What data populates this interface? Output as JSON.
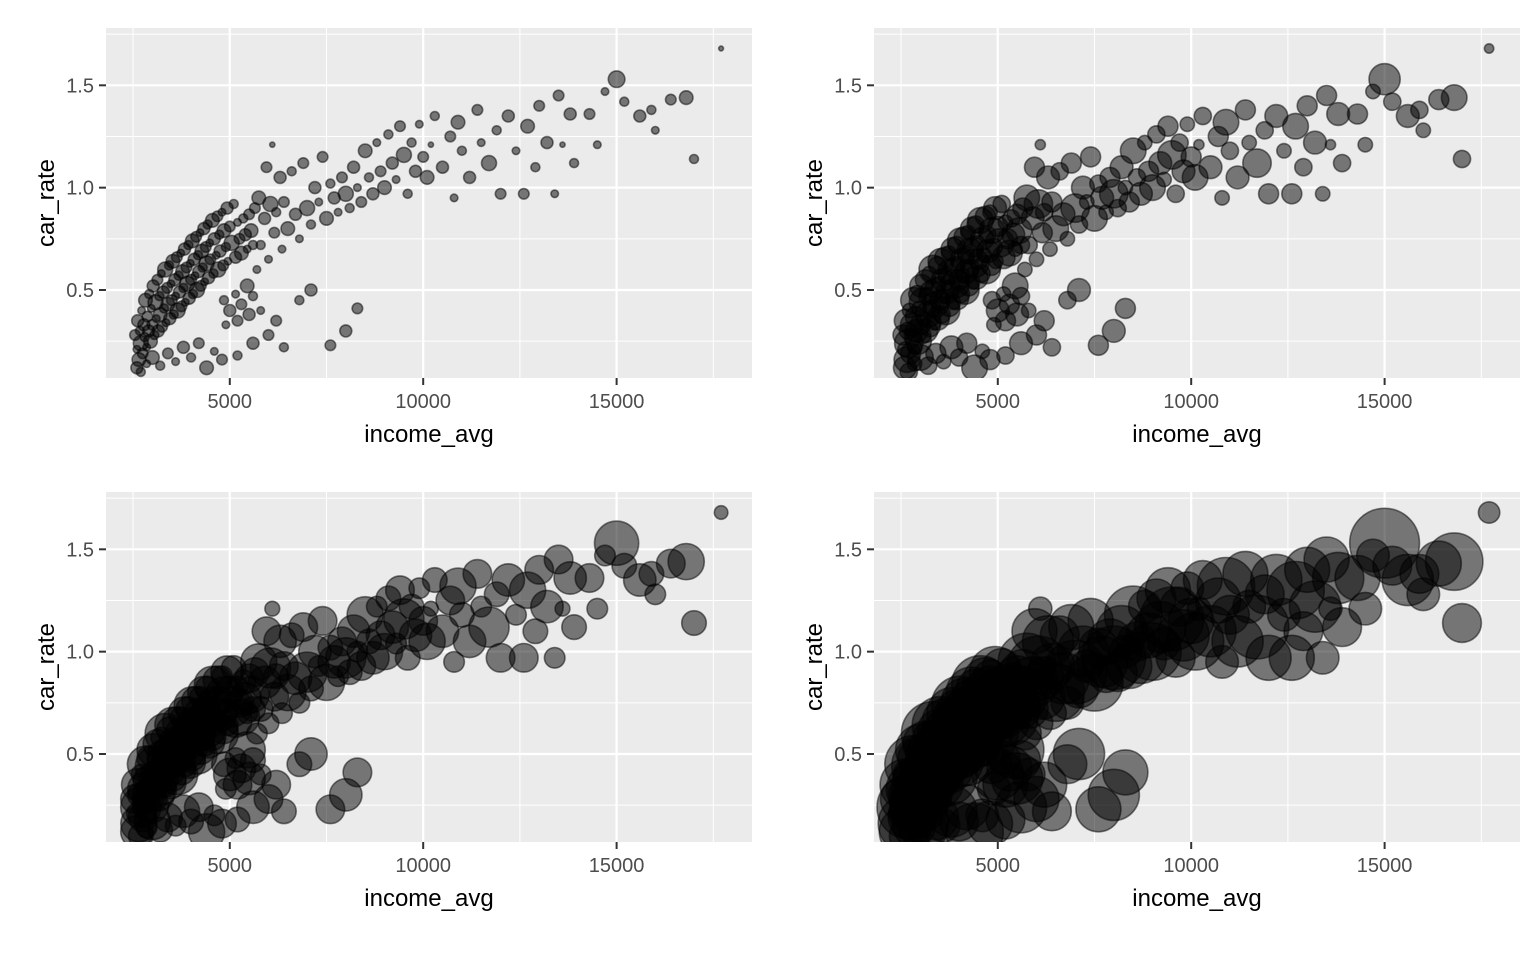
{
  "figure": {
    "background_color": "#ffffff",
    "panel_background_color": "#ebebeb",
    "grid_major_color": "#ffffff",
    "grid_minor_color": "#ffffff",
    "tick_mark_color": "#333333",
    "tick_label_color": "#4d4d4d",
    "axis_title_color": "#000000",
    "point_color": "#000000",
    "point_fill_opacity": 0.5,
    "point_stroke_opacity": 0.5
  },
  "chart_data": {
    "type": "scatter",
    "title": "",
    "xlabel": "income_avg",
    "ylabel": "car_rate",
    "xlim": [
      1800,
      18500
    ],
    "ylim": [
      0.07,
      1.78
    ],
    "grid": true,
    "x_ticks": [
      {
        "v": 5000,
        "label": "5000"
      },
      {
        "v": 10000,
        "label": "10000"
      },
      {
        "v": 15000,
        "label": "15000"
      }
    ],
    "y_ticks": [
      {
        "v": 0.5,
        "label": "0.5"
      },
      {
        "v": 1.0,
        "label": "1.0"
      },
      {
        "v": 1.5,
        "label": "1.5"
      }
    ],
    "x_minor_ticks": [
      2500,
      7500,
      12500,
      17500
    ],
    "y_minor_ticks": [
      0.25,
      0.75,
      1.25,
      1.75
    ],
    "panels": [
      {
        "name": "top-left",
        "bubble_size": "small",
        "point_radius_range": [
          1.5,
          9
        ]
      },
      {
        "name": "top-right",
        "bubble_size": "medium",
        "point_radius_range": [
          3,
          17
        ]
      },
      {
        "name": "bottom-left",
        "bubble_size": "large",
        "point_radius_range": [
          4.5,
          24
        ]
      },
      {
        "name": "bottom-right",
        "bubble_size": "x-large",
        "point_radius_range": [
          7,
          38
        ]
      }
    ],
    "points_format": [
      "income_avg",
      "car_rate",
      "size_norm"
    ],
    "points": [
      [
        2550,
        0.28,
        0.5
      ],
      [
        2600,
        0.21,
        0.3
      ],
      [
        2620,
        0.35,
        0.6
      ],
      [
        2650,
        0.16,
        0.7
      ],
      [
        2680,
        0.3,
        0.4
      ],
      [
        2700,
        0.24,
        0.8
      ],
      [
        2720,
        0.4,
        0.3
      ],
      [
        2750,
        0.19,
        0.5
      ],
      [
        2780,
        0.33,
        0.6
      ],
      [
        2800,
        0.27,
        0.4
      ],
      [
        2820,
        0.45,
        0.7
      ],
      [
        2850,
        0.22,
        0.3
      ],
      [
        2870,
        0.37,
        0.5
      ],
      [
        2900,
        0.3,
        0.6
      ],
      [
        2920,
        0.48,
        0.4
      ],
      [
        2950,
        0.25,
        0.7
      ],
      [
        2970,
        0.41,
        0.3
      ],
      [
        3000,
        0.33,
        0.5
      ],
      [
        3020,
        0.52,
        0.6
      ],
      [
        3050,
        0.28,
        0.4
      ],
      [
        3080,
        0.44,
        0.8
      ],
      [
        3100,
        0.36,
        0.3
      ],
      [
        3130,
        0.55,
        0.5
      ],
      [
        3150,
        0.3,
        0.6
      ],
      [
        3180,
        0.47,
        0.4
      ],
      [
        3200,
        0.38,
        0.7
      ],
      [
        3230,
        0.58,
        0.3
      ],
      [
        3250,
        0.32,
        0.5
      ],
      [
        3280,
        0.49,
        0.6
      ],
      [
        3300,
        0.41,
        0.4
      ],
      [
        3330,
        0.6,
        0.8
      ],
      [
        3350,
        0.34,
        0.3
      ],
      [
        3380,
        0.51,
        0.5
      ],
      [
        3400,
        0.43,
        0.7
      ],
      [
        3430,
        0.62,
        0.4
      ],
      [
        3450,
        0.36,
        0.6
      ],
      [
        3480,
        0.53,
        0.3
      ],
      [
        3500,
        0.45,
        0.5
      ],
      [
        3530,
        0.64,
        0.7
      ],
      [
        3550,
        0.38,
        0.4
      ],
      [
        3580,
        0.55,
        0.6
      ],
      [
        3600,
        0.47,
        0.3
      ],
      [
        3630,
        0.66,
        0.5
      ],
      [
        3650,
        0.4,
        0.8
      ],
      [
        3680,
        0.57,
        0.4
      ],
      [
        3700,
        0.49,
        0.6
      ],
      [
        3730,
        0.68,
        0.3
      ],
      [
        3750,
        0.42,
        0.5
      ],
      [
        3780,
        0.59,
        0.7
      ],
      [
        3800,
        0.51,
        0.4
      ],
      [
        3830,
        0.7,
        0.6
      ],
      [
        3850,
        0.44,
        0.3
      ],
      [
        3880,
        0.61,
        0.5
      ],
      [
        3900,
        0.53,
        0.8
      ],
      [
        3930,
        0.72,
        0.4
      ],
      [
        3950,
        0.46,
        0.6
      ],
      [
        3980,
        0.63,
        0.3
      ],
      [
        4000,
        0.55,
        0.5
      ],
      [
        4030,
        0.74,
        0.7
      ],
      [
        4050,
        0.48,
        0.4
      ],
      [
        4080,
        0.65,
        0.6
      ],
      [
        4100,
        0.57,
        0.3
      ],
      [
        4130,
        0.76,
        0.5
      ],
      [
        4150,
        0.5,
        0.8
      ],
      [
        4180,
        0.67,
        0.4
      ],
      [
        4200,
        0.59,
        0.6
      ],
      [
        4230,
        0.78,
        0.3
      ],
      [
        4250,
        0.52,
        0.5
      ],
      [
        4280,
        0.69,
        0.7
      ],
      [
        4300,
        0.61,
        0.4
      ],
      [
        4330,
        0.8,
        0.6
      ],
      [
        4350,
        0.54,
        0.3
      ],
      [
        4380,
        0.71,
        0.5
      ],
      [
        4400,
        0.63,
        0.8
      ],
      [
        4430,
        0.82,
        0.4
      ],
      [
        4450,
        0.56,
        0.6
      ],
      [
        4480,
        0.73,
        0.3
      ],
      [
        4500,
        0.65,
        0.5
      ],
      [
        4550,
        0.84,
        0.7
      ],
      [
        4580,
        0.58,
        0.4
      ],
      [
        4600,
        0.75,
        0.6
      ],
      [
        4650,
        0.67,
        0.3
      ],
      [
        4680,
        0.86,
        0.5
      ],
      [
        4700,
        0.6,
        0.8
      ],
      [
        4730,
        0.77,
        0.4
      ],
      [
        4750,
        0.69,
        0.6
      ],
      [
        4800,
        0.88,
        0.3
      ],
      [
        4830,
        0.62,
        0.5
      ],
      [
        4850,
        0.79,
        0.7
      ],
      [
        4900,
        0.71,
        0.4
      ],
      [
        4930,
        0.9,
        0.6
      ],
      [
        4950,
        0.64,
        0.3
      ],
      [
        5000,
        0.81,
        0.5
      ],
      [
        5050,
        0.73,
        0.8
      ],
      [
        5100,
        0.92,
        0.4
      ],
      [
        5150,
        0.66,
        0.6
      ],
      [
        5200,
        0.83,
        0.3
      ],
      [
        5250,
        0.75,
        0.5
      ],
      [
        5300,
        0.68,
        0.7
      ],
      [
        5350,
        0.85,
        0.4
      ],
      [
        5400,
        0.77,
        0.6
      ],
      [
        5450,
        0.7,
        0.3
      ],
      [
        5500,
        0.87,
        0.5
      ],
      [
        5550,
        0.79,
        0.7
      ],
      [
        5600,
        0.72,
        0.4
      ],
      [
        4850,
        0.45,
        0.4
      ],
      [
        5000,
        0.4,
        0.6
      ],
      [
        5150,
        0.48,
        0.3
      ],
      [
        5300,
        0.43,
        0.5
      ],
      [
        5450,
        0.52,
        0.7
      ],
      [
        5200,
        0.35,
        0.5
      ],
      [
        4900,
        0.33,
        0.3
      ],
      [
        5500,
        0.38,
        0.6
      ],
      [
        5600,
        0.47,
        0.4
      ],
      [
        2600,
        0.12,
        0.6
      ],
      [
        2700,
        0.1,
        0.4
      ],
      [
        2850,
        0.14,
        0.3
      ],
      [
        3000,
        0.17,
        0.7
      ],
      [
        3200,
        0.13,
        0.4
      ],
      [
        3400,
        0.19,
        0.5
      ],
      [
        3600,
        0.15,
        0.3
      ],
      [
        3800,
        0.22,
        0.6
      ],
      [
        4000,
        0.17,
        0.4
      ],
      [
        4200,
        0.24,
        0.5
      ],
      [
        4400,
        0.12,
        0.7
      ],
      [
        4600,
        0.2,
        0.3
      ],
      [
        4800,
        0.16,
        0.5
      ],
      [
        5200,
        0.18,
        0.4
      ],
      [
        5600,
        0.24,
        0.6
      ],
      [
        6000,
        0.28,
        0.5
      ],
      [
        6400,
        0.22,
        0.4
      ],
      [
        7600,
        0.23,
        0.5
      ],
      [
        8000,
        0.3,
        0.6
      ],
      [
        8300,
        0.41,
        0.5
      ],
      [
        6800,
        0.45,
        0.4
      ],
      [
        6200,
        0.35,
        0.5
      ],
      [
        5800,
        0.4,
        0.3
      ],
      [
        7100,
        0.5,
        0.6
      ],
      [
        5650,
        0.9,
        0.5
      ],
      [
        5700,
        0.6,
        0.3
      ],
      [
        5750,
        0.95,
        0.7
      ],
      [
        5800,
        0.72,
        0.4
      ],
      [
        5900,
        0.85,
        0.6
      ],
      [
        5950,
        1.1,
        0.5
      ],
      [
        6000,
        0.65,
        0.3
      ],
      [
        6050,
        0.92,
        0.8
      ],
      [
        6100,
        1.21,
        0.15
      ],
      [
        6150,
        0.78,
        0.5
      ],
      [
        6200,
        0.88,
        0.4
      ],
      [
        6300,
        1.05,
        0.6
      ],
      [
        6350,
        0.7,
        0.3
      ],
      [
        6400,
        0.93,
        0.5
      ],
      [
        6500,
        0.8,
        0.7
      ],
      [
        6600,
        1.08,
        0.4
      ],
      [
        6700,
        0.87,
        0.6
      ],
      [
        6800,
        0.75,
        0.3
      ],
      [
        6900,
        1.12,
        0.5
      ],
      [
        7000,
        0.9,
        0.8
      ],
      [
        7100,
        0.82,
        0.4
      ],
      [
        7200,
        1.0,
        0.6
      ],
      [
        7300,
        0.93,
        0.3
      ],
      [
        7400,
        1.15,
        0.5
      ],
      [
        7500,
        0.85,
        0.7
      ],
      [
        7600,
        1.02,
        0.4
      ],
      [
        7700,
        0.95,
        0.6
      ],
      [
        7800,
        0.88,
        0.3
      ],
      [
        7900,
        1.05,
        0.5
      ],
      [
        8000,
        0.97,
        0.8
      ],
      [
        8100,
        0.9,
        0.4
      ],
      [
        8200,
        1.1,
        0.6
      ],
      [
        8300,
        1.0,
        0.3
      ],
      [
        8400,
        0.93,
        0.5
      ],
      [
        8500,
        1.18,
        0.7
      ],
      [
        8600,
        1.05,
        0.4
      ],
      [
        8700,
        0.97,
        0.6
      ],
      [
        8800,
        1.22,
        0.3
      ],
      [
        8900,
        1.08,
        0.5
      ],
      [
        9000,
        1.0,
        0.7
      ],
      [
        9100,
        1.26,
        0.4
      ],
      [
        9200,
        1.12,
        0.6
      ],
      [
        9300,
        1.04,
        0.3
      ],
      [
        9400,
        1.3,
        0.5
      ],
      [
        9500,
        1.16,
        0.8
      ],
      [
        9600,
        0.97,
        0.4
      ],
      [
        9700,
        1.22,
        0.4
      ],
      [
        9800,
        1.08,
        0.6
      ],
      [
        9900,
        1.31,
        0.3
      ],
      [
        10000,
        1.15,
        0.5
      ],
      [
        10100,
        1.05,
        0.7
      ],
      [
        10200,
        1.21,
        0.15
      ],
      [
        10300,
        1.35,
        0.4
      ],
      [
        10500,
        1.1,
        0.6
      ],
      [
        10700,
        1.25,
        0.5
      ],
      [
        10800,
        0.95,
        0.3
      ],
      [
        10900,
        1.32,
        0.7
      ],
      [
        11000,
        1.18,
        0.4
      ],
      [
        11200,
        1.05,
        0.6
      ],
      [
        11400,
        1.38,
        0.5
      ],
      [
        11500,
        1.22,
        0.3
      ],
      [
        11700,
        1.12,
        0.8
      ],
      [
        11900,
        1.28,
        0.4
      ],
      [
        12000,
        0.97,
        0.5
      ],
      [
        12200,
        1.35,
        0.6
      ],
      [
        12400,
        1.18,
        0.3
      ],
      [
        12600,
        0.97,
        0.5
      ],
      [
        12700,
        1.3,
        0.7
      ],
      [
        12900,
        1.1,
        0.4
      ],
      [
        13000,
        1.4,
        0.5
      ],
      [
        13200,
        1.22,
        0.6
      ],
      [
        13400,
        0.97,
        0.3
      ],
      [
        13500,
        1.45,
        0.5
      ],
      [
        13600,
        1.21,
        0.15
      ],
      [
        13800,
        1.36,
        0.6
      ],
      [
        13900,
        1.12,
        0.4
      ],
      [
        14300,
        1.36,
        0.5
      ],
      [
        14700,
        1.47,
        0.3
      ],
      [
        15000,
        1.53,
        0.9
      ],
      [
        15200,
        1.42,
        0.4
      ],
      [
        15600,
        1.35,
        0.6
      ],
      [
        16000,
        1.28,
        0.3
      ],
      [
        16400,
        1.43,
        0.5
      ],
      [
        16800,
        1.44,
        0.7
      ],
      [
        17000,
        1.14,
        0.4
      ],
      [
        17700,
        1.68,
        0.12
      ],
      [
        14500,
        1.21,
        0.3
      ],
      [
        15900,
        1.38,
        0.4
      ]
    ]
  }
}
